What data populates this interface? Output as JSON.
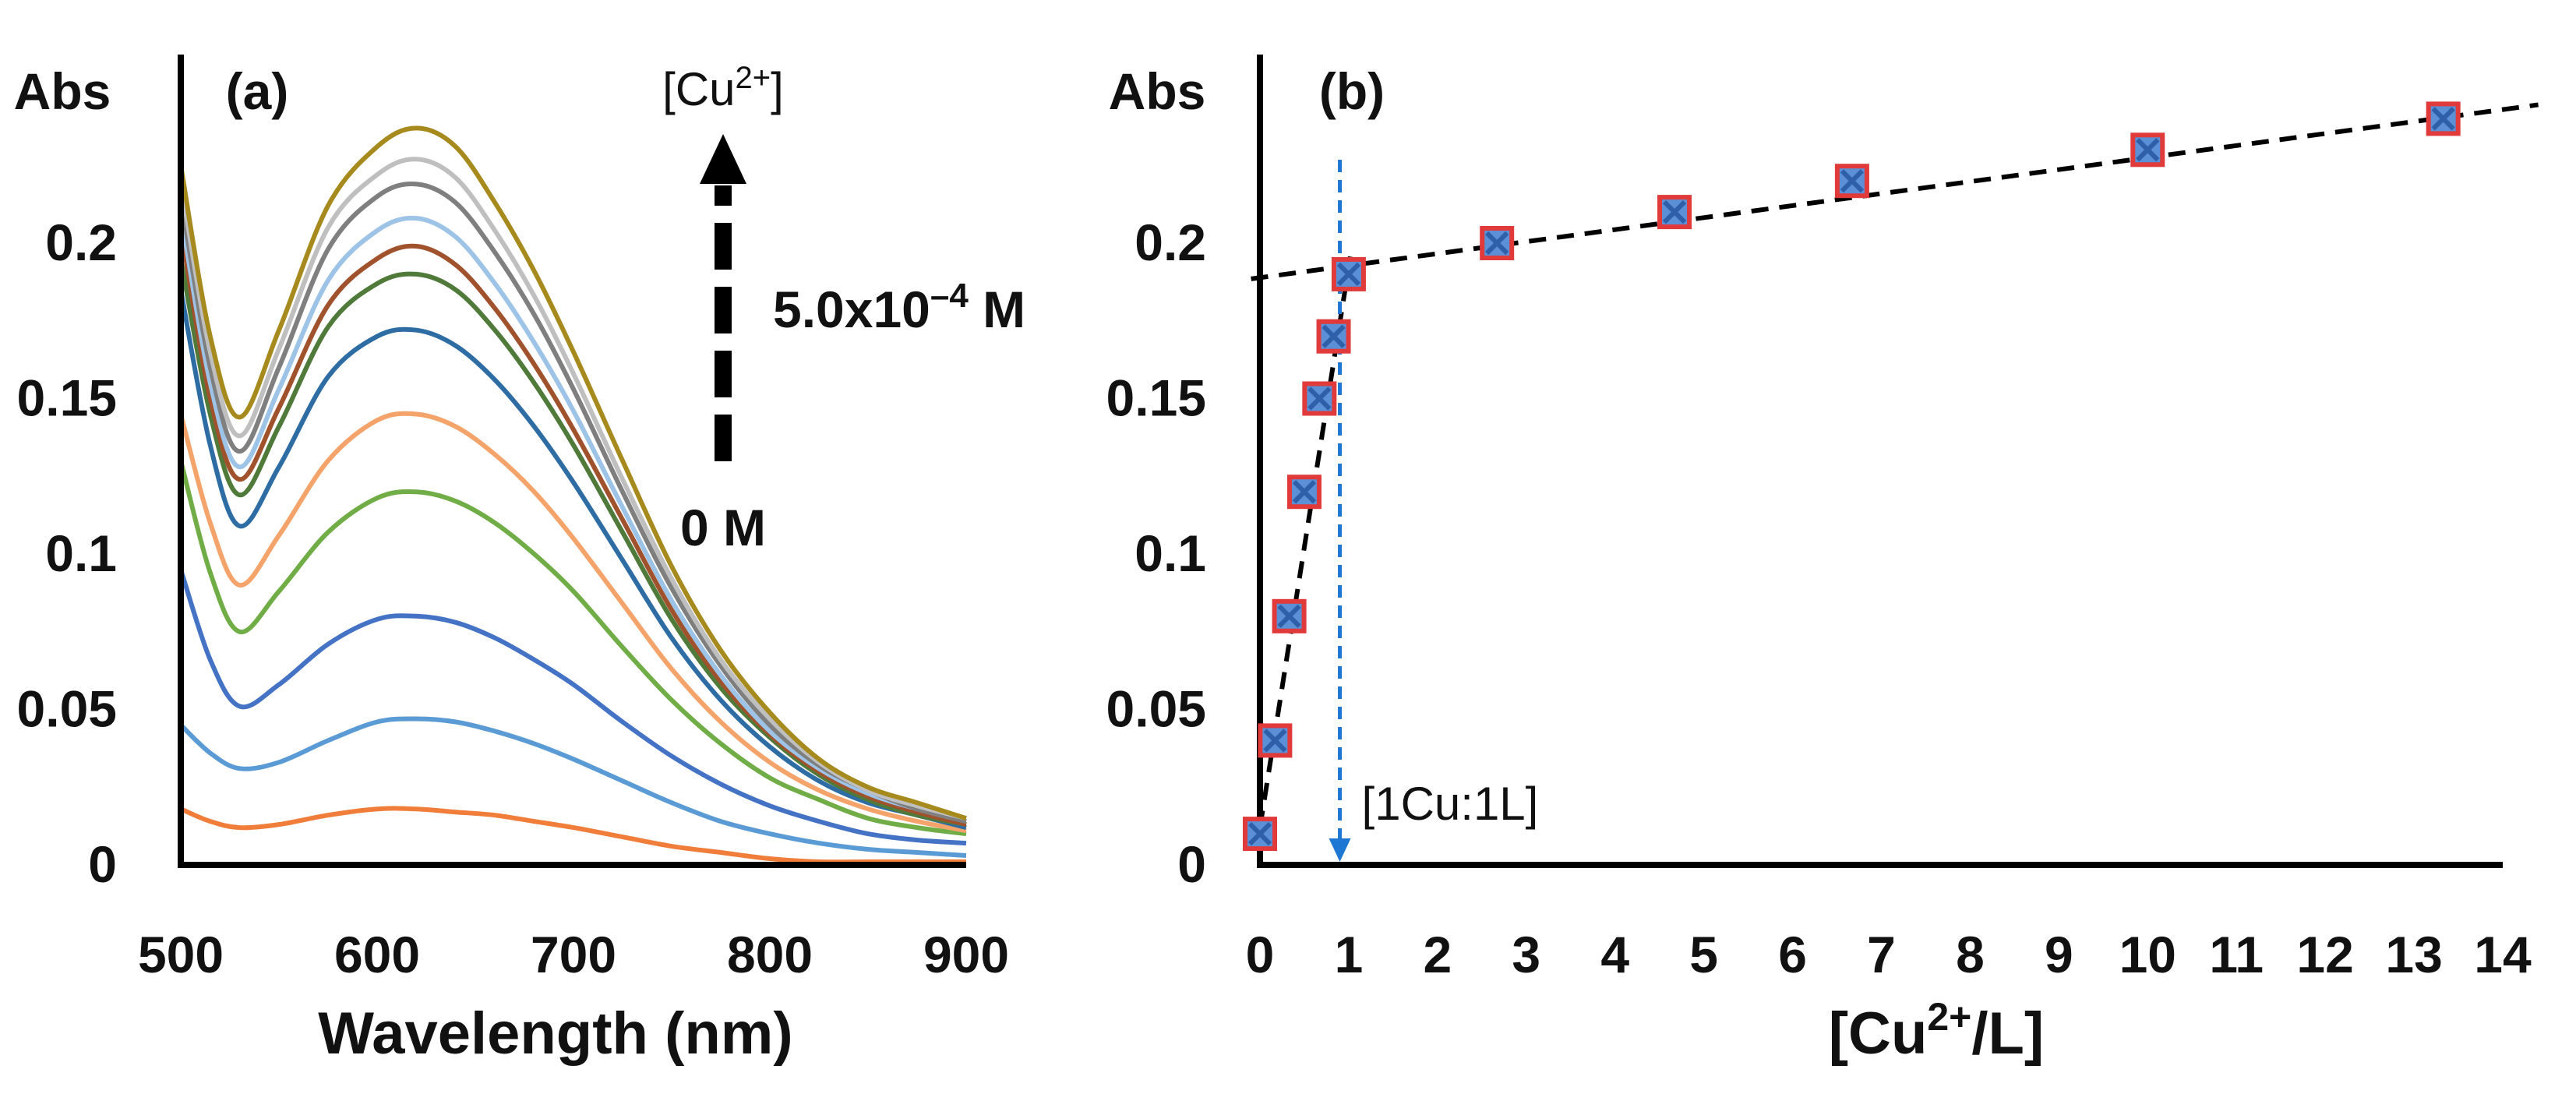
{
  "chart_data": [
    {
      "panel": "(a)",
      "type": "line",
      "ylabel": "Abs",
      "xlabel": "Wavelength (nm)",
      "xlim": [
        500,
        900
      ],
      "ylim": [
        0,
        0.25
      ],
      "x_ticks": [
        "500",
        "600",
        "700",
        "800",
        "900"
      ],
      "y_ticks": [
        "0",
        "0.05",
        "0.1",
        "0.15",
        "0.2"
      ],
      "x": [
        500,
        515,
        530,
        550,
        575,
        600,
        620,
        640,
        660,
        680,
        700,
        725,
        750,
        775,
        800,
        825,
        850,
        875,
        900
      ],
      "series": [
        {
          "name": "c1",
          "color": "#f07d3a",
          "values": [
            0.018,
            0.014,
            0.012,
            0.013,
            0.016,
            0.018,
            0.018,
            0.017,
            0.016,
            0.014,
            0.012,
            0.009,
            0.006,
            0.004,
            0.002,
            0.001,
            0.001,
            0.001,
            0.001
          ]
        },
        {
          "name": "c2",
          "color": "#5b9bd5",
          "values": [
            0.045,
            0.036,
            0.031,
            0.033,
            0.04,
            0.046,
            0.047,
            0.046,
            0.043,
            0.039,
            0.034,
            0.027,
            0.02,
            0.014,
            0.01,
            0.007,
            0.005,
            0.004,
            0.003
          ]
        },
        {
          "name": "c3",
          "color": "#4472c4",
          "values": [
            0.095,
            0.066,
            0.051,
            0.058,
            0.071,
            0.079,
            0.08,
            0.078,
            0.073,
            0.066,
            0.058,
            0.046,
            0.035,
            0.026,
            0.019,
            0.014,
            0.01,
            0.008,
            0.007
          ]
        },
        {
          "name": "c4",
          "color": "#70ad47",
          "values": [
            0.13,
            0.094,
            0.075,
            0.088,
            0.107,
            0.118,
            0.12,
            0.117,
            0.11,
            0.1,
            0.088,
            0.07,
            0.053,
            0.039,
            0.028,
            0.021,
            0.015,
            0.012,
            0.01
          ]
        },
        {
          "name": "c5",
          "color": "#f4a46a",
          "values": [
            0.145,
            0.11,
            0.09,
            0.106,
            0.13,
            0.143,
            0.145,
            0.141,
            0.132,
            0.12,
            0.105,
            0.084,
            0.063,
            0.046,
            0.033,
            0.024,
            0.018,
            0.014,
            0.011
          ]
        },
        {
          "name": "c6",
          "color": "#2e6ca4",
          "values": [
            0.185,
            0.135,
            0.109,
            0.128,
            0.157,
            0.17,
            0.172,
            0.167,
            0.156,
            0.141,
            0.123,
            0.098,
            0.073,
            0.053,
            0.038,
            0.027,
            0.02,
            0.016,
            0.012
          ]
        },
        {
          "name": "c7",
          "color": "#4f7a3a",
          "values": [
            0.195,
            0.145,
            0.119,
            0.141,
            0.173,
            0.187,
            0.19,
            0.185,
            0.172,
            0.155,
            0.135,
            0.107,
            0.079,
            0.057,
            0.041,
            0.029,
            0.021,
            0.016,
            0.013
          ]
        },
        {
          "name": "c8",
          "color": "#a0522d",
          "values": [
            0.205,
            0.15,
            0.124,
            0.147,
            0.18,
            0.195,
            0.199,
            0.193,
            0.179,
            0.161,
            0.14,
            0.111,
            0.082,
            0.059,
            0.042,
            0.03,
            0.022,
            0.017,
            0.013
          ]
        },
        {
          "name": "c9",
          "color": "#9dc3e6",
          "values": [
            0.21,
            0.155,
            0.128,
            0.153,
            0.188,
            0.204,
            0.208,
            0.202,
            0.187,
            0.168,
            0.146,
            0.115,
            0.085,
            0.061,
            0.043,
            0.031,
            0.023,
            0.018,
            0.014
          ]
        },
        {
          "name": "c10",
          "color": "#7f7f7f",
          "values": [
            0.215,
            0.16,
            0.133,
            0.16,
            0.198,
            0.215,
            0.219,
            0.213,
            0.197,
            0.177,
            0.153,
            0.12,
            0.089,
            0.064,
            0.045,
            0.032,
            0.024,
            0.018,
            0.014
          ]
        },
        {
          "name": "c11",
          "color": "#bfbfbf",
          "values": [
            0.22,
            0.165,
            0.138,
            0.166,
            0.205,
            0.222,
            0.227,
            0.221,
            0.204,
            0.183,
            0.158,
            0.124,
            0.092,
            0.066,
            0.047,
            0.033,
            0.024,
            0.019,
            0.015
          ]
        },
        {
          "name": "c12",
          "color": "#a68a1e",
          "values": [
            0.225,
            0.17,
            0.144,
            0.172,
            0.212,
            0.231,
            0.237,
            0.231,
            0.213,
            0.191,
            0.165,
            0.13,
            0.096,
            0.069,
            0.049,
            0.034,
            0.025,
            0.02,
            0.015
          ]
        }
      ],
      "annotations": {
        "concentration_label_prefix": "[Cu",
        "concentration_label_sup": "2+",
        "concentration_label_suffix": "]",
        "high_conc": "5.0x10",
        "high_conc_exp": "–4",
        "high_conc_unit": " M",
        "low_conc": "0 M"
      }
    },
    {
      "panel": "(b)",
      "type": "scatter",
      "ylabel": "Abs",
      "xlabel_prefix": "[Cu",
      "xlabel_sup": "2+",
      "xlabel_suffix": "/L]",
      "xlim": [
        0,
        14
      ],
      "ylim": [
        0,
        0.25
      ],
      "x_ticks": [
        "0",
        "1",
        "2",
        "3",
        "4",
        "5",
        "6",
        "7",
        "8",
        "9",
        "10",
        "11",
        "12",
        "13",
        "14"
      ],
      "y_ticks": [
        "0",
        "0.05",
        "0.1",
        "0.15",
        "0.2"
      ],
      "x": [
        0,
        0.17,
        0.33,
        0.5,
        0.67,
        0.83,
        1.0,
        2.67,
        4.67,
        6.67,
        10.0,
        13.33
      ],
      "y": [
        0.01,
        0.04,
        0.08,
        0.12,
        0.15,
        0.17,
        0.19,
        0.2,
        0.21,
        0.22,
        0.23,
        0.24
      ],
      "marker_color": "#5b8fd6",
      "marker_edge": "#e03a3a",
      "fit_lines": [
        {
          "name": "steep-fit",
          "x": [
            0.0,
            1.02
          ],
          "y": [
            0.012,
            0.196
          ]
        },
        {
          "name": "plateau-fit",
          "x": [
            -0.1,
            14.4
          ],
          "y": [
            0.1885,
            0.2445
          ]
        }
      ],
      "stoichiometry_x": 0.9,
      "stoichiometry_label": "[1Cu:1L]",
      "stoich_color": "#1f77d4"
    }
  ]
}
